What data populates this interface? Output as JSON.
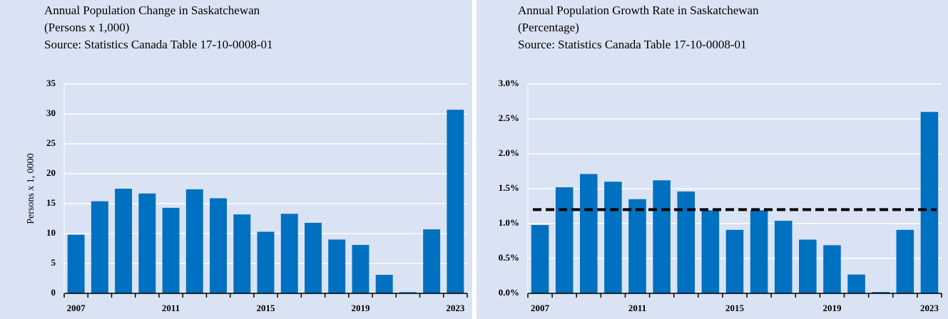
{
  "chart_data": [
    {
      "type": "bar",
      "title": "Annual Population Change in Saskatchewan",
      "subtitle": "(Persons  x 1,000)",
      "source": "Source: Statistics Canada Table 17-10-0008-01",
      "ylabel": "Persons x 1, 0000",
      "categories": [
        "2007",
        null,
        null,
        null,
        "2011",
        null,
        null,
        null,
        "2015",
        null,
        null,
        null,
        "2019",
        null,
        null,
        null,
        "2023"
      ],
      "values": [
        9.8,
        15.4,
        17.5,
        16.7,
        14.3,
        17.4,
        15.9,
        13.2,
        10.3,
        13.3,
        11.8,
        9.0,
        8.1,
        3.1,
        0.2,
        10.7,
        30.7
      ],
      "color": "#0070c0",
      "ylim": [
        0,
        35
      ],
      "yticks": [
        0,
        5,
        10,
        15,
        20,
        25,
        30,
        35
      ],
      "grid": true
    },
    {
      "type": "bar",
      "title": "Annual Population Growth Rate in Saskatchewan",
      "subtitle": "(Percentage)",
      "source": "Source: Statistics Canada Table 17-10-0008-01",
      "categories": [
        "2007",
        null,
        null,
        null,
        "2011",
        null,
        null,
        null,
        "2015",
        null,
        null,
        null,
        "2019",
        null,
        null,
        null,
        "2023"
      ],
      "values": [
        0.98,
        1.52,
        1.71,
        1.6,
        1.35,
        1.62,
        1.46,
        1.19,
        0.91,
        1.19,
        1.04,
        0.77,
        0.69,
        0.27,
        0.02,
        0.91,
        2.6
      ],
      "color": "#0070c0",
      "reference_line": 1.2,
      "ylim": [
        0,
        3.0
      ],
      "yticks": [
        {
          "value": 0,
          "label": "0.0%"
        },
        {
          "value": 0.5,
          "label": "0.5%"
        },
        {
          "value": 1.0,
          "label": "1.0%"
        },
        {
          "value": 1.5,
          "label": "1.5%"
        },
        {
          "value": 2.0,
          "label": "2.0%"
        },
        {
          "value": 2.5,
          "label": "2.5%"
        },
        {
          "value": 3.0,
          "label": "3.0%"
        }
      ],
      "grid": true
    }
  ]
}
